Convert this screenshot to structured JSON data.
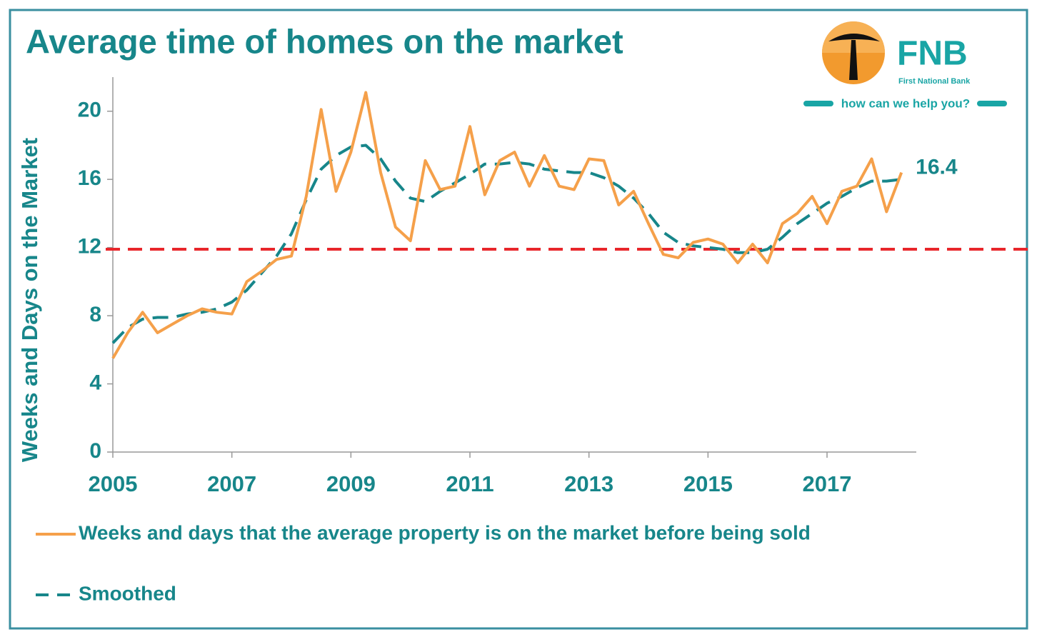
{
  "logo": {
    "brand": "FNB",
    "bank": "First National Bank",
    "slogan": "how can we help you?"
  },
  "chart_data": {
    "type": "line",
    "title": "Average time of homes on the market",
    "y_label": "Weeks and Days on the Market",
    "x": [
      2005,
      2005.25,
      2005.5,
      2005.75,
      2006,
      2006.25,
      2006.5,
      2006.75,
      2007,
      2007.25,
      2007.5,
      2007.75,
      2008,
      2008.25,
      2008.5,
      2008.75,
      2009,
      2009.25,
      2009.5,
      2009.75,
      2010,
      2010.25,
      2010.5,
      2010.75,
      2011,
      2011.25,
      2011.5,
      2011.75,
      2012,
      2012.25,
      2012.5,
      2012.75,
      2013,
      2013.25,
      2013.5,
      2013.75,
      2014,
      2014.25,
      2014.5,
      2014.75,
      2015,
      2015.25,
      2015.5,
      2015.75,
      2016,
      2016.25,
      2016.5,
      2016.75,
      2017,
      2017.25,
      2017.5,
      2017.75,
      2018,
      2018.25
    ],
    "series": [
      {
        "name": "Weeks and days that the average property is on the market before being sold",
        "color": "#f5a04a",
        "dashed": false,
        "values": [
          5.5,
          7.0,
          8.2,
          7.0,
          7.5,
          8.0,
          8.4,
          8.2,
          8.1,
          10.0,
          10.6,
          11.3,
          11.5,
          15.0,
          20.1,
          15.3,
          17.6,
          21.1,
          16.4,
          13.2,
          12.4,
          17.1,
          15.4,
          15.6,
          19.1,
          15.1,
          17.1,
          17.6,
          15.6,
          17.4,
          15.6,
          15.4,
          17.2,
          17.1,
          14.5,
          15.3,
          13.4,
          11.6,
          11.4,
          12.3,
          12.5,
          12.2,
          11.1,
          12.2,
          11.1,
          13.4,
          14.0,
          15.0,
          13.4,
          15.3,
          15.6,
          17.2,
          14.1,
          16.4
        ],
        "value_labels": [
          null,
          null,
          null,
          null,
          null,
          null,
          null,
          null,
          null,
          null,
          null,
          null,
          null,
          null,
          null,
          null,
          null,
          null,
          null,
          null,
          null,
          null,
          null,
          null,
          null,
          null,
          null,
          null,
          null,
          null,
          null,
          null,
          null,
          null,
          null,
          null,
          null,
          null,
          null,
          null,
          null,
          null,
          null,
          null,
          null,
          null,
          null,
          null,
          null,
          null,
          null,
          null,
          null,
          "16.4"
        ]
      },
      {
        "name": "Smoothed",
        "color": "#17868a",
        "dashed": true,
        "values": [
          6.4,
          7.3,
          7.8,
          7.9,
          7.9,
          8.1,
          8.2,
          8.4,
          8.8,
          9.5,
          10.5,
          11.5,
          12.8,
          14.8,
          16.6,
          17.4,
          17.9,
          18.0,
          17.2,
          15.9,
          14.9,
          14.7,
          15.3,
          15.8,
          16.3,
          16.9,
          16.9,
          17.0,
          16.9,
          16.6,
          16.5,
          16.4,
          16.4,
          16.1,
          15.6,
          14.9,
          14.0,
          12.9,
          12.3,
          12.1,
          12.0,
          11.9,
          11.7,
          11.7,
          11.9,
          12.6,
          13.4,
          14.0,
          14.6,
          15.0,
          15.5,
          15.9,
          15.9,
          16.0
        ]
      }
    ],
    "reference_line": {
      "value": 11.9,
      "color": "#e8262b"
    },
    "xlim": [
      2005,
      2018.5
    ],
    "xticks": [
      2005,
      2007,
      2009,
      2011,
      2013,
      2015,
      2017
    ],
    "ylim": [
      0,
      22
    ],
    "yticks": [
      0,
      4,
      8,
      12,
      16,
      20
    ]
  }
}
